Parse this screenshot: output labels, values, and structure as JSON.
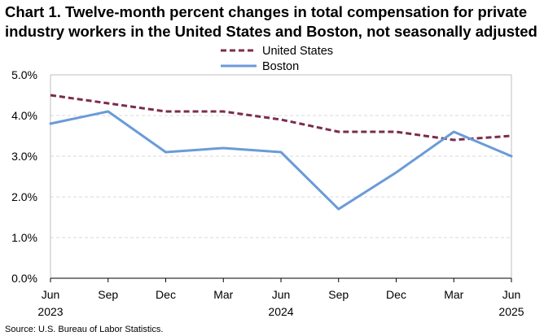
{
  "chart_data": {
    "type": "line",
    "title_line1": "Chart 1. Twelve-month percent changes in total compensation for private",
    "title_line2": "industry workers in the United States and Boston, not seasonally adjusted",
    "x": [
      "Jun 2023",
      "Sep 2023",
      "Dec 2023",
      "Mar 2024",
      "Jun 2024",
      "Sep 2024",
      "Dec 2024",
      "Mar 2025",
      "Jun 2025"
    ],
    "x_tick_labels": [
      {
        "month": "Jun",
        "year": "2023"
      },
      {
        "month": "Sep",
        "year": ""
      },
      {
        "month": "Dec",
        "year": ""
      },
      {
        "month": "Mar",
        "year": ""
      },
      {
        "month": "Jun",
        "year": "2024"
      },
      {
        "month": "Sep",
        "year": ""
      },
      {
        "month": "Dec",
        "year": ""
      },
      {
        "month": "Mar",
        "year": ""
      },
      {
        "month": "Jun",
        "year": "2025"
      }
    ],
    "series": [
      {
        "name": "United States",
        "color": "#7b2c4e",
        "dash": "dashed",
        "values": [
          4.5,
          4.3,
          4.1,
          4.1,
          3.9,
          3.6,
          3.6,
          3.4,
          3.5
        ]
      },
      {
        "name": "Boston",
        "color": "#6a9bd8",
        "dash": "solid",
        "values": [
          3.8,
          4.1,
          3.1,
          3.2,
          3.1,
          1.7,
          2.6,
          3.6,
          3.0
        ]
      }
    ],
    "y_ticks": [
      "0.0%",
      "1.0%",
      "2.0%",
      "3.0%",
      "4.0%",
      "5.0%"
    ],
    "ylim": [
      0,
      5
    ],
    "grid": true,
    "legend": "top-center"
  },
  "source": "Source: U.S. Bureau of Labor Statistics."
}
